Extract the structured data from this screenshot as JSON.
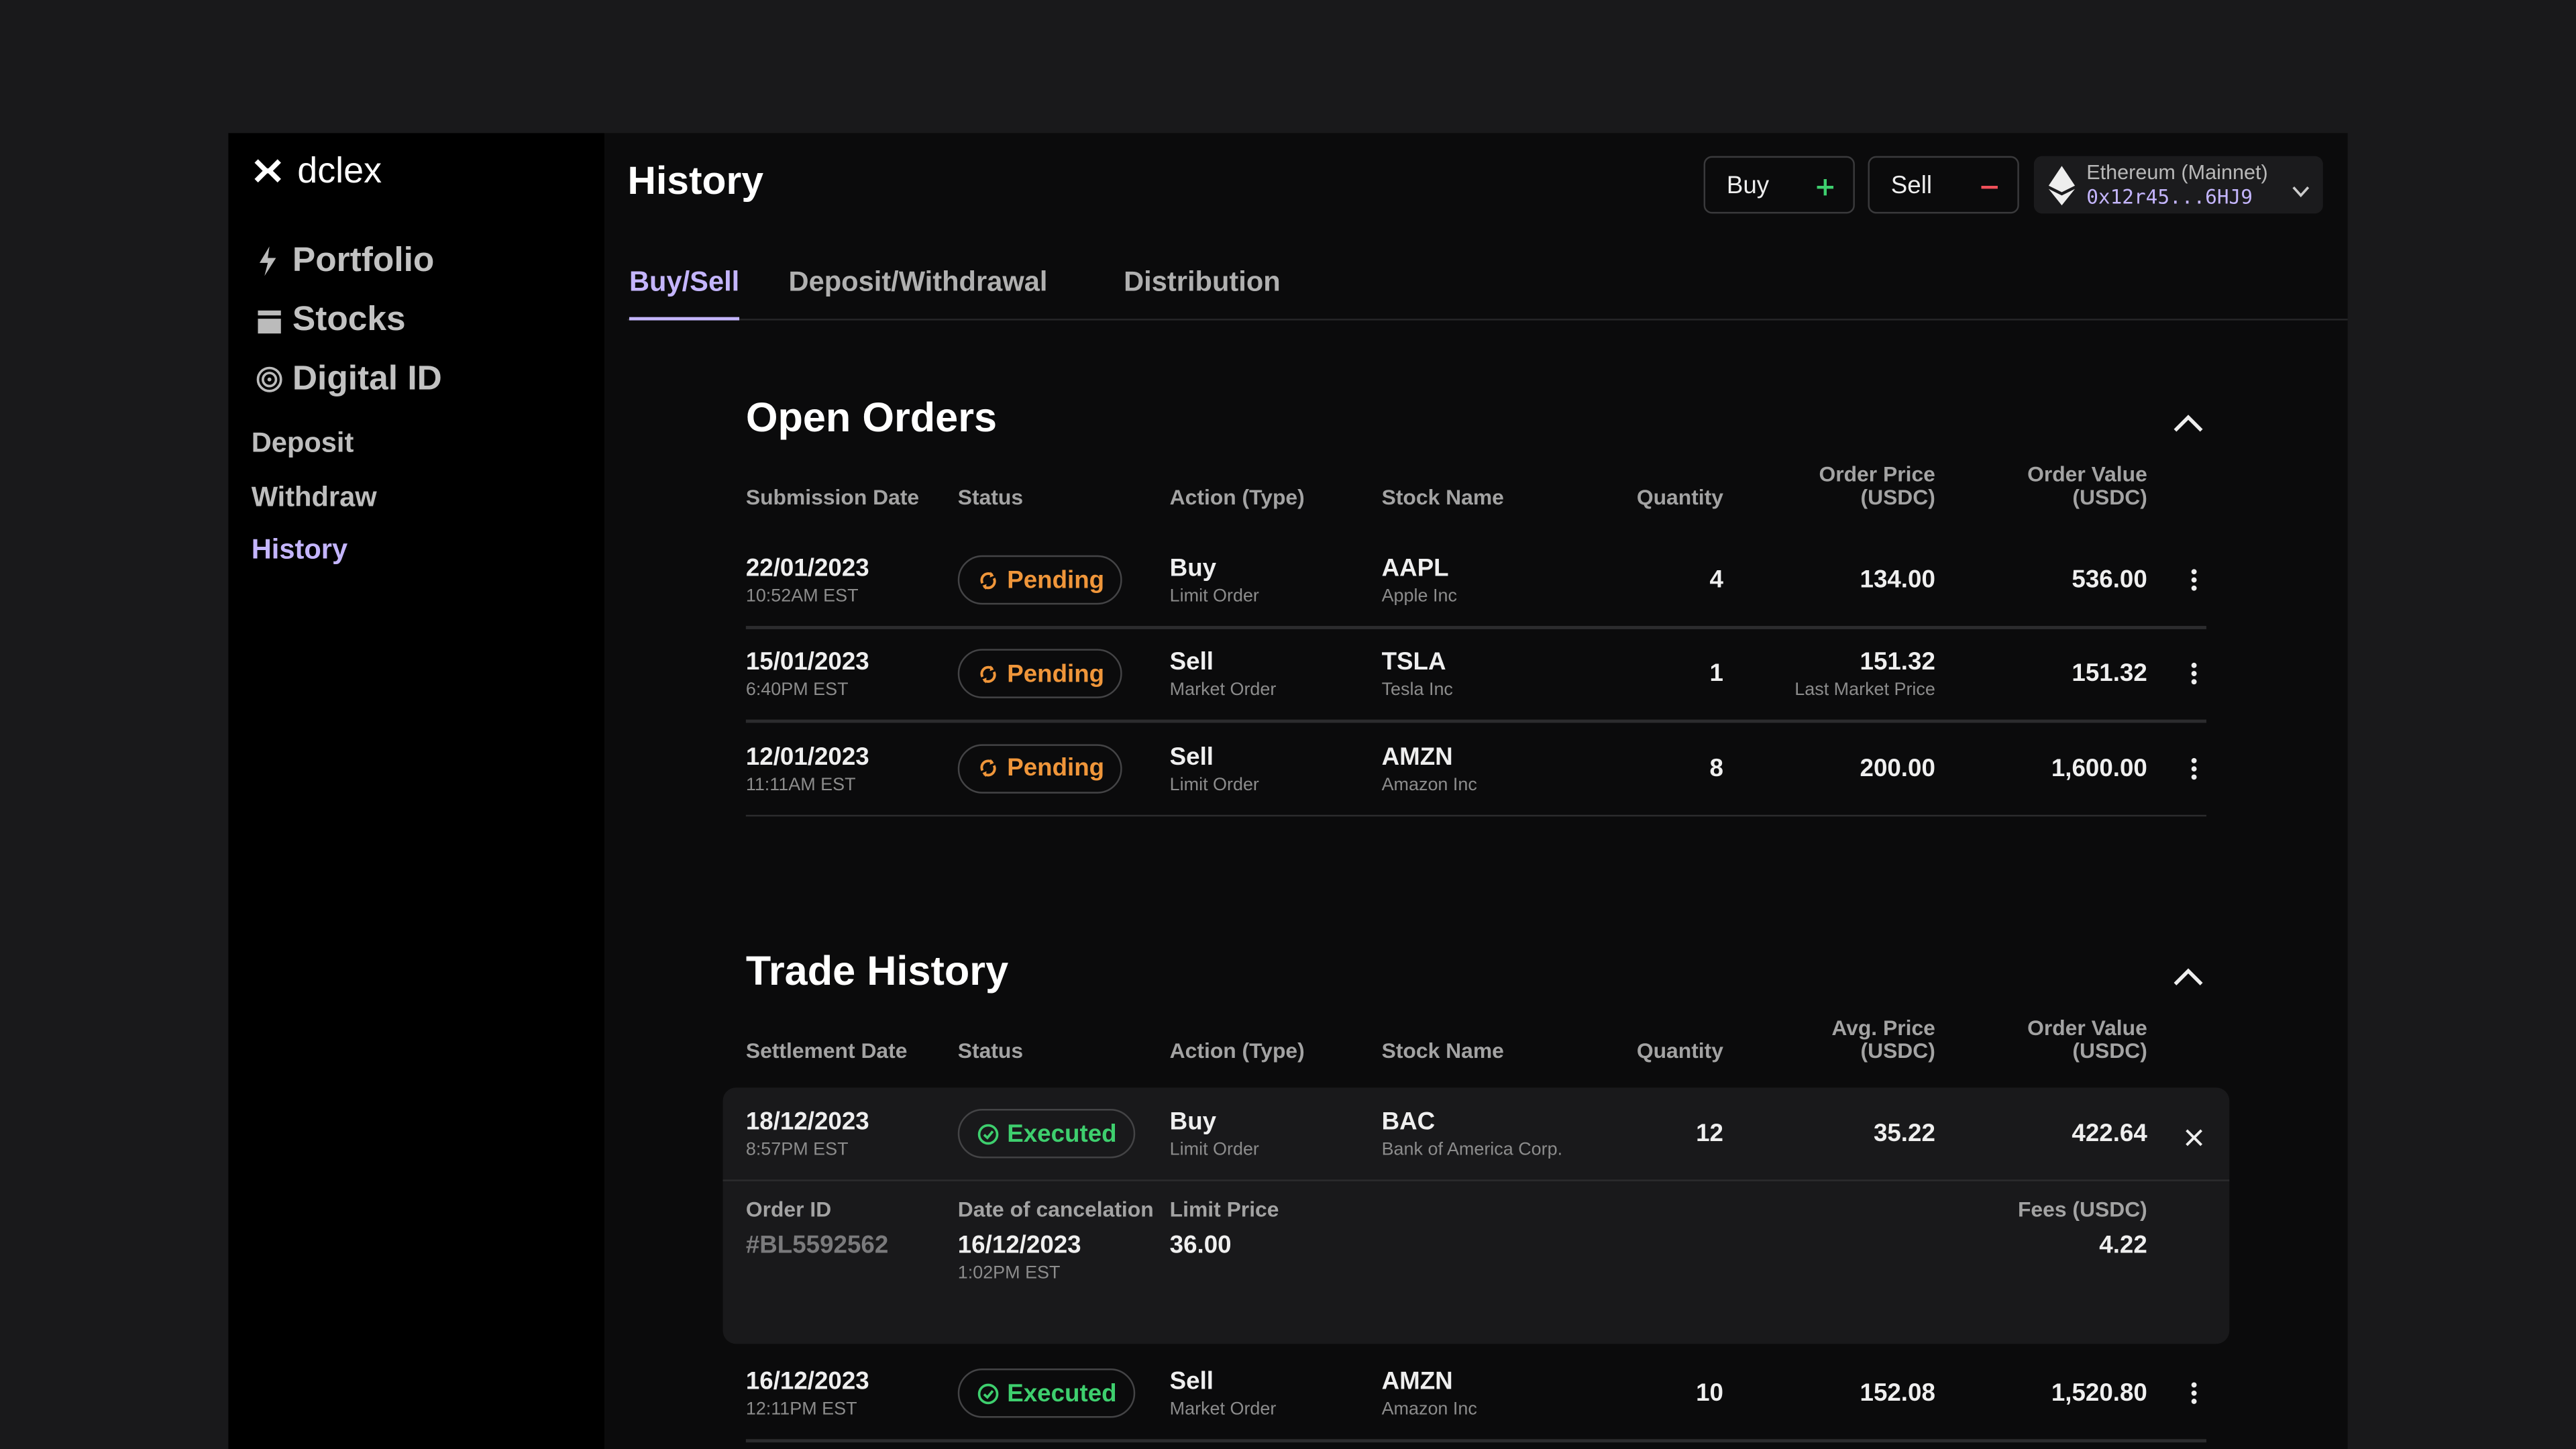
{
  "sidebar": {
    "brand": "dclex",
    "main_nav": [
      "Portfolio",
      "Stocks",
      "Digital ID"
    ],
    "sub_nav": [
      "Deposit",
      "Withdraw",
      "History"
    ]
  },
  "header": {
    "title": "History",
    "buy": "Buy",
    "sell": "Sell",
    "network": "Ethereum (Mainnet)",
    "address": "0x12r45...6HJ9"
  },
  "tabs": [
    "Buy/Sell",
    "Deposit/Withdrawal",
    "Distribution"
  ],
  "open_orders": {
    "title": "Open Orders",
    "columns": [
      "Submission Date",
      "Status",
      "Action (Type)",
      "Stock Name",
      "Quantity",
      "Order Price (USDC)",
      "Order Value (USDC)"
    ],
    "rows": [
      {
        "date": "22/01/2023",
        "time": "10:52AM EST",
        "status": "Pending",
        "action": "Buy",
        "order_type": "Limit Order",
        "symbol": "AAPL",
        "company": "Apple Inc",
        "quantity": "4",
        "price": "134.00",
        "value": "536.00"
      },
      {
        "date": "15/01/2023",
        "time": "6:40PM EST",
        "status": "Pending",
        "action": "Sell",
        "order_type": "Market Order",
        "symbol": "TSLA",
        "company": "Tesla Inc",
        "quantity": "1",
        "price": "151.32",
        "price_note": "Last Market Price",
        "value": "151.32"
      },
      {
        "date": "12/01/2023",
        "time": "11:11AM EST",
        "status": "Pending",
        "action": "Sell",
        "order_type": "Limit Order",
        "symbol": "AMZN",
        "company": "Amazon Inc",
        "quantity": "8",
        "price": "200.00",
        "value": "1,600.00"
      }
    ]
  },
  "trade_history": {
    "title": "Trade History",
    "columns": [
      "Settlement Date",
      "Status",
      "Action (Type)",
      "Stock Name",
      "Quantity",
      "Avg. Price (USDC)",
      "Order Value (USDC)"
    ],
    "rows": [
      {
        "date": "18/12/2023",
        "time": "8:57PM EST",
        "status": "Executed",
        "action": "Buy",
        "order_type": "Limit Order",
        "symbol": "BAC",
        "company": "Bank of America Corp.",
        "quantity": "12",
        "price": "35.22",
        "value": "422.64",
        "details": {
          "order_id_label": "Order ID",
          "order_id": "#BL5592562",
          "cancel_label": "Date of cancelation",
          "cancel_date": "16/12/2023",
          "cancel_time": "1:02PM EST",
          "limit_label": "Limit Price",
          "limit_price": "36.00",
          "fees_label": "Fees (USDC)",
          "fees": "4.22"
        }
      },
      {
        "date": "16/12/2023",
        "time": "12:11PM EST",
        "status": "Executed",
        "action": "Sell",
        "order_type": "Market Order",
        "symbol": "AMZN",
        "company": "Amazon Inc",
        "quantity": "10",
        "price": "152.08",
        "value": "1,520.80"
      }
    ]
  }
}
